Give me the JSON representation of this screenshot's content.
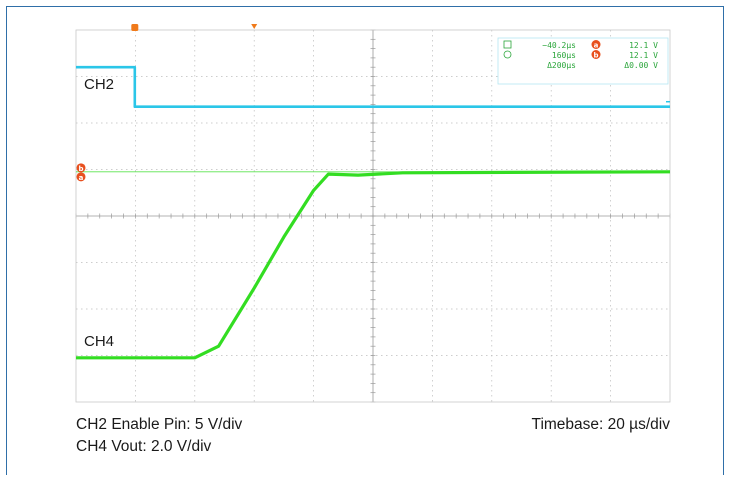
{
  "chart_data": {
    "type": "line",
    "xlim": [
      -60,
      140
    ],
    "ylim": [
      -4,
      4
    ],
    "grid": true,
    "series": [
      {
        "name": "CH2",
        "color": "#2bc6e8",
        "x": [
          -60,
          -58,
          -40.2,
          -40.2,
          -38,
          140
        ],
        "y": [
          3.2,
          3.2,
          3.2,
          2.35,
          2.35,
          2.35
        ]
      },
      {
        "name": "CH4",
        "color": "#33dd22",
        "x": [
          -60,
          -20,
          -12,
          0,
          10,
          20,
          25,
          35,
          50,
          140
        ],
        "y": [
          -3.05,
          -3.05,
          -2.8,
          -1.55,
          -0.45,
          0.55,
          0.9,
          0.88,
          0.93,
          0.95
        ]
      }
    ],
    "trace_labels": [
      {
        "text": "CH2",
        "series": "CH2"
      },
      {
        "text": "CH4",
        "series": "CH4"
      }
    ],
    "ref_line": {
      "y": 0.95,
      "color": "#33dd22"
    },
    "trigger_marker_x": 0,
    "cursor_a_x": -40.2,
    "readout": {
      "row1": {
        "time": "−40.2µs",
        "marker": "a",
        "value": "12.1 V"
      },
      "row2": {
        "time": "160µs",
        "marker": "b",
        "value": "12.1 V"
      },
      "row3": {
        "time": "Δ200µs",
        "value": "Δ0.00 V"
      }
    },
    "markers": {
      "a": "a",
      "b": "b"
    }
  },
  "captions": {
    "ch2": "CH2 Enable Pin: 5 V/div",
    "ch4": "CH4 Vout: 2.0 V/div",
    "timebase": "Timebase: 20 µs/div"
  }
}
